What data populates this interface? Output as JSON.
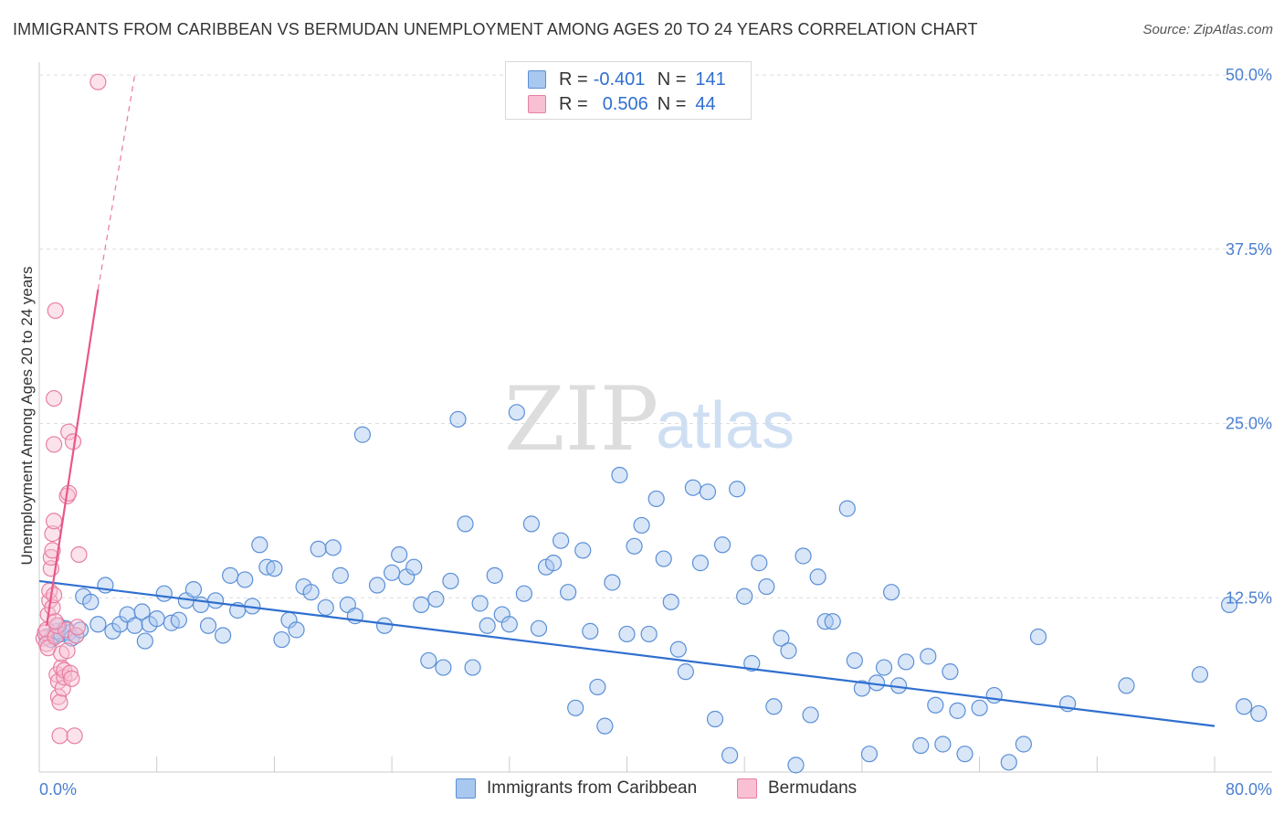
{
  "header": {
    "title": "IMMIGRANTS FROM CARIBBEAN VS BERMUDAN UNEMPLOYMENT AMONG AGES 20 TO 24 YEARS CORRELATION CHART",
    "source": "Source: ZipAtlas.com"
  },
  "watermark": {
    "zip": "ZIP",
    "atlas": "atlas"
  },
  "legend": {
    "rows": [
      {
        "r_label": "R =",
        "r_value": "-0.401",
        "n_label": "N =",
        "n_value": "141",
        "color": "#a9c8f0",
        "border": "#5b8fd6"
      },
      {
        "r_label": "R =",
        "r_value": "0.506",
        "n_label": "N =",
        "n_value": "44",
        "color": "#f8c0d2",
        "border": "#e77fa2"
      }
    ]
  },
  "bottom_legend": {
    "items": [
      {
        "label": "Immigrants from Caribbean",
        "color": "#a9c8f0",
        "border": "#5b8fd6"
      },
      {
        "label": "Bermudans",
        "color": "#f8c0d2",
        "border": "#e77fa2"
      }
    ]
  },
  "chart_data": {
    "type": "scatter",
    "title": "IMMIGRANTS FROM CARIBBEAN VS BERMUDAN UNEMPLOYMENT AMONG AGES 20 TO 24 YEARS CORRELATION CHART",
    "xlabel": "",
    "ylabel": "Unemployment Among Ages 20 to 24 years",
    "xlim": [
      0,
      80
    ],
    "ylim": [
      0,
      50
    ],
    "x_tick_labels": [
      "0.0%",
      "80.0%"
    ],
    "y_ticks": [
      12.5,
      25.0,
      37.5,
      50.0
    ],
    "y_tick_labels": [
      "12.5%",
      "25.0%",
      "37.5%",
      "50.0%"
    ],
    "grid": "horizontal dashed",
    "colors": {
      "caribbean": "#5b8fd6",
      "caribbean_fill": "#a9c8f0",
      "bermudan": "#e77fa2",
      "bermudan_fill": "#f8c0d2",
      "trend_blue": "#2f6fcf",
      "trend_pink": "#e8578a"
    },
    "series": [
      {
        "name": "Immigrants from Caribbean",
        "trend": {
          "x": [
            0,
            80
          ],
          "y": [
            13.7,
            3.3
          ]
        },
        "points": [
          [
            0.5,
            9.7
          ],
          [
            0.8,
            9.5
          ],
          [
            1.0,
            9.8
          ],
          [
            1.2,
            10.1
          ],
          [
            1.5,
            9.9
          ],
          [
            1.8,
            10.3
          ],
          [
            2.0,
            10.0
          ],
          [
            2.2,
            9.6
          ],
          [
            2.5,
            9.8
          ],
          [
            2.8,
            10.2
          ],
          [
            3.0,
            12.6
          ],
          [
            3.5,
            12.2
          ],
          [
            4.0,
            10.6
          ],
          [
            4.5,
            13.4
          ],
          [
            5.0,
            10.1
          ],
          [
            5.5,
            10.6
          ],
          [
            6.0,
            11.3
          ],
          [
            6.5,
            10.5
          ],
          [
            7.0,
            11.5
          ],
          [
            7.2,
            9.4
          ],
          [
            7.5,
            10.6
          ],
          [
            8.0,
            11.0
          ],
          [
            8.5,
            12.8
          ],
          [
            9.0,
            10.7
          ],
          [
            9.5,
            10.9
          ],
          [
            10.0,
            12.3
          ],
          [
            10.5,
            13.1
          ],
          [
            11.0,
            12.0
          ],
          [
            11.5,
            10.5
          ],
          [
            12.0,
            12.3
          ],
          [
            12.5,
            9.8
          ],
          [
            13.0,
            14.1
          ],
          [
            13.5,
            11.6
          ],
          [
            14.0,
            13.8
          ],
          [
            14.5,
            11.9
          ],
          [
            15.0,
            16.3
          ],
          [
            15.5,
            14.7
          ],
          [
            16.0,
            14.6
          ],
          [
            16.5,
            9.5
          ],
          [
            17.0,
            10.9
          ],
          [
            17.5,
            10.2
          ],
          [
            18.0,
            13.3
          ],
          [
            18.5,
            12.9
          ],
          [
            19.0,
            16.0
          ],
          [
            19.5,
            11.8
          ],
          [
            20.0,
            16.1
          ],
          [
            20.5,
            14.1
          ],
          [
            21.0,
            12.0
          ],
          [
            21.5,
            11.2
          ],
          [
            22.0,
            24.2
          ],
          [
            23.0,
            13.4
          ],
          [
            23.5,
            10.5
          ],
          [
            24.0,
            14.3
          ],
          [
            24.5,
            15.6
          ],
          [
            25.0,
            14.0
          ],
          [
            25.5,
            14.7
          ],
          [
            26.0,
            12.0
          ],
          [
            26.5,
            8.0
          ],
          [
            27.0,
            12.4
          ],
          [
            27.5,
            7.5
          ],
          [
            28.0,
            13.7
          ],
          [
            28.5,
            25.3
          ],
          [
            29.0,
            17.8
          ],
          [
            29.5,
            7.5
          ],
          [
            30.0,
            12.1
          ],
          [
            30.5,
            10.5
          ],
          [
            31.0,
            14.1
          ],
          [
            31.5,
            11.3
          ],
          [
            32.0,
            10.6
          ],
          [
            32.5,
            25.8
          ],
          [
            33.0,
            12.8
          ],
          [
            33.5,
            17.8
          ],
          [
            34.0,
            10.3
          ],
          [
            34.5,
            14.7
          ],
          [
            35.0,
            15.0
          ],
          [
            35.5,
            16.6
          ],
          [
            36.0,
            12.9
          ],
          [
            36.5,
            4.6
          ],
          [
            37.0,
            15.9
          ],
          [
            37.5,
            10.1
          ],
          [
            38.0,
            6.1
          ],
          [
            38.5,
            3.3
          ],
          [
            39.0,
            13.6
          ],
          [
            39.5,
            21.3
          ],
          [
            40.0,
            9.9
          ],
          [
            40.5,
            16.2
          ],
          [
            41.0,
            17.7
          ],
          [
            41.5,
            9.9
          ],
          [
            42.0,
            19.6
          ],
          [
            42.5,
            15.3
          ],
          [
            43.0,
            12.2
          ],
          [
            43.5,
            8.8
          ],
          [
            44.0,
            7.2
          ],
          [
            44.5,
            20.4
          ],
          [
            45.0,
            15.0
          ],
          [
            45.5,
            20.1
          ],
          [
            46.0,
            3.8
          ],
          [
            46.5,
            16.3
          ],
          [
            47.0,
            1.2
          ],
          [
            47.5,
            20.3
          ],
          [
            48.0,
            12.6
          ],
          [
            48.5,
            7.8
          ],
          [
            49.0,
            15.0
          ],
          [
            49.5,
            13.3
          ],
          [
            50.0,
            4.7
          ],
          [
            50.5,
            9.6
          ],
          [
            51.0,
            8.7
          ],
          [
            51.5,
            0.5
          ],
          [
            52.0,
            15.5
          ],
          [
            52.5,
            4.1
          ],
          [
            53.0,
            14.0
          ],
          [
            53.5,
            10.8
          ],
          [
            54.0,
            10.8
          ],
          [
            55.0,
            18.9
          ],
          [
            55.5,
            8.0
          ],
          [
            56.0,
            6.0
          ],
          [
            56.5,
            1.3
          ],
          [
            57.0,
            6.4
          ],
          [
            57.5,
            7.5
          ],
          [
            58.0,
            12.9
          ],
          [
            58.5,
            6.2
          ],
          [
            59.0,
            7.9
          ],
          [
            60.0,
            1.9
          ],
          [
            60.5,
            8.3
          ],
          [
            61.0,
            4.8
          ],
          [
            61.5,
            2.0
          ],
          [
            62.0,
            7.2
          ],
          [
            62.5,
            4.4
          ],
          [
            63.0,
            1.3
          ],
          [
            64.0,
            4.6
          ],
          [
            65.0,
            5.5
          ],
          [
            66.0,
            0.7
          ],
          [
            67.0,
            2.0
          ],
          [
            68.0,
            9.7
          ],
          [
            70.0,
            4.9
          ],
          [
            74.0,
            6.2
          ],
          [
            79.0,
            7.0
          ],
          [
            82.0,
            4.7
          ],
          [
            83.0,
            4.2
          ],
          [
            81.0,
            12.0
          ],
          [
            1.3,
            10.5
          ]
        ]
      },
      {
        "name": "Bermudans",
        "trend": {
          "x": [
            0.5,
            4.0
          ],
          "y": [
            10.5,
            34.6
          ]
        },
        "trend_dashed": {
          "x": [
            4.0,
            6.5
          ],
          "y": [
            34.6,
            50.0
          ]
        },
        "points": [
          [
            0.3,
            9.6
          ],
          [
            0.4,
            10.0
          ],
          [
            0.5,
            10.2
          ],
          [
            0.5,
            9.2
          ],
          [
            0.6,
            8.9
          ],
          [
            0.6,
            11.3
          ],
          [
            0.7,
            12.3
          ],
          [
            0.7,
            13.0
          ],
          [
            0.8,
            14.6
          ],
          [
            0.8,
            15.4
          ],
          [
            0.9,
            15.9
          ],
          [
            0.9,
            17.1
          ],
          [
            1.0,
            18.0
          ],
          [
            1.0,
            23.5
          ],
          [
            1.0,
            26.8
          ],
          [
            1.1,
            33.1
          ],
          [
            1.1,
            9.7
          ],
          [
            1.2,
            10.5
          ],
          [
            1.2,
            7.0
          ],
          [
            1.3,
            6.5
          ],
          [
            1.3,
            5.4
          ],
          [
            1.4,
            5.0
          ],
          [
            1.4,
            2.6
          ],
          [
            1.5,
            7.5
          ],
          [
            1.5,
            8.5
          ],
          [
            1.6,
            6.0
          ],
          [
            1.7,
            6.8
          ],
          [
            1.7,
            7.3
          ],
          [
            1.8,
            10.2
          ],
          [
            1.9,
            8.7
          ],
          [
            1.9,
            19.8
          ],
          [
            2.0,
            20.0
          ],
          [
            2.0,
            24.4
          ],
          [
            2.1,
            7.1
          ],
          [
            2.2,
            6.7
          ],
          [
            2.3,
            23.7
          ],
          [
            2.4,
            2.6
          ],
          [
            2.5,
            9.8
          ],
          [
            2.6,
            10.4
          ],
          [
            2.7,
            15.6
          ],
          [
            0.9,
            11.8
          ],
          [
            1.0,
            12.7
          ],
          [
            1.1,
            10.8
          ],
          [
            4.0,
            49.5
          ]
        ]
      }
    ]
  },
  "axis_labels": {
    "x_min": "0.0%",
    "x_max": "80.0%"
  }
}
